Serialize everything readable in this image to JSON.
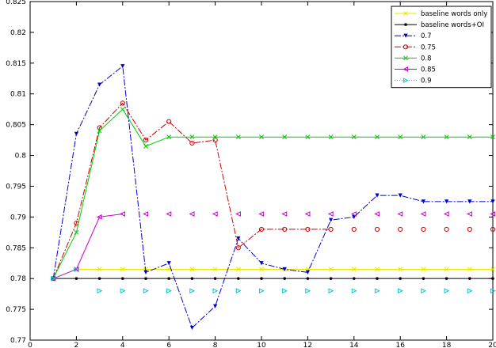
{
  "chart_data": {
    "type": "line",
    "x": [
      1,
      2,
      3,
      4,
      5,
      6,
      7,
      8,
      9,
      10,
      11,
      12,
      13,
      14,
      15,
      16,
      17,
      18,
      19,
      20
    ],
    "xlim": [
      0,
      20
    ],
    "ylim": [
      0.77,
      0.825
    ],
    "xticks": [
      0,
      2,
      4,
      6,
      8,
      10,
      12,
      14,
      16,
      18,
      20
    ],
    "xtick_labels": [
      "0",
      "2",
      "4",
      "6",
      "8",
      "10",
      "12",
      "14",
      "16",
      "18",
      "20"
    ],
    "yticks": [
      0.77,
      0.775,
      0.78,
      0.785,
      0.79,
      0.795,
      0.8,
      0.805,
      0.81,
      0.815,
      0.82,
      0.825
    ],
    "ytick_labels": [
      "0.77",
      "0.775",
      "0.78",
      "0.785",
      "0.79",
      "0.795",
      "0.8",
      "0.805",
      "0.81",
      "0.815",
      "0.82",
      "0.825"
    ],
    "legend_position": "top-right",
    "grid": false,
    "series": [
      {
        "name": "baseline words only",
        "color": "#e6e600",
        "line": "solid",
        "marker": "x",
        "values": [
          0.78,
          0.7815,
          0.7815,
          0.7815,
          0.7815,
          0.7815,
          0.7815,
          0.7815,
          0.7815,
          0.7815,
          0.7815,
          0.7815,
          0.7815,
          0.7815,
          0.7815,
          0.7815,
          0.7815,
          0.7815,
          0.7815,
          0.7815
        ]
      },
      {
        "name": "baseline words+OI",
        "color": "#000000",
        "line": "solid",
        "marker": "dot",
        "values": [
          0.78,
          0.78,
          0.78,
          0.78,
          0.78,
          0.78,
          0.78,
          0.78,
          0.78,
          0.78,
          0.78,
          0.78,
          0.78,
          0.78,
          0.78,
          0.78,
          0.78,
          0.78,
          0.78,
          0.78
        ]
      },
      {
        "name": "0.7",
        "color": "#0000cc",
        "line": "dashdot",
        "marker": "triangle-down",
        "values": [
          0.78,
          0.8035,
          0.8115,
          0.8145,
          0.781,
          0.7825,
          0.772,
          0.7755,
          0.7865,
          0.7825,
          0.7815,
          0.781,
          0.7895,
          0.79,
          0.7935,
          0.7935,
          0.7925,
          0.7925,
          0.7925,
          0.7925
        ]
      },
      {
        "name": "0.75",
        "color": "#cc0000",
        "line": "dashdot",
        "marker": "circle",
        "values": [
          0.78,
          0.789,
          0.8045,
          0.8085,
          0.8025,
          0.8055,
          0.802,
          0.8025,
          0.785,
          0.788,
          0.788,
          0.788,
          0.788,
          0.788,
          0.788,
          0.788,
          0.788,
          0.788,
          0.788,
          0.788
        ]
      },
      {
        "name": "0.8",
        "color": "#00cc00",
        "line": "solid",
        "marker": "x",
        "values": [
          0.78,
          0.7875,
          0.804,
          0.8075,
          0.8015,
          0.803,
          0.803,
          0.803,
          0.803,
          0.803,
          0.803,
          0.803,
          0.803,
          0.803,
          0.803,
          0.803,
          0.803,
          0.803,
          0.803,
          0.803
        ]
      },
      {
        "name": "0.85",
        "color": "#cc00cc",
        "line": "solid",
        "marker": "triangle-left",
        "values": [
          0.78,
          0.7815,
          0.79,
          0.7905,
          0.7905,
          0.7905,
          0.7905,
          0.7905,
          0.7905,
          0.7905,
          0.7905,
          0.7905,
          0.7905,
          0.7905,
          0.7905,
          0.7905,
          0.7905,
          0.7905,
          0.7905,
          0.7905
        ]
      },
      {
        "name": "0.9",
        "color": "#00cccc",
        "line": "dotted",
        "marker": "triangle-right",
        "values": [
          0.78,
          0.7815,
          0.778,
          0.778,
          0.778,
          0.778,
          0.778,
          0.778,
          0.778,
          0.778,
          0.778,
          0.778,
          0.778,
          0.778,
          0.778,
          0.778,
          0.778,
          0.778,
          0.778,
          0.778
        ]
      }
    ],
    "solid_to": [
      20,
      20,
      20,
      13,
      20,
      4,
      2
    ]
  }
}
